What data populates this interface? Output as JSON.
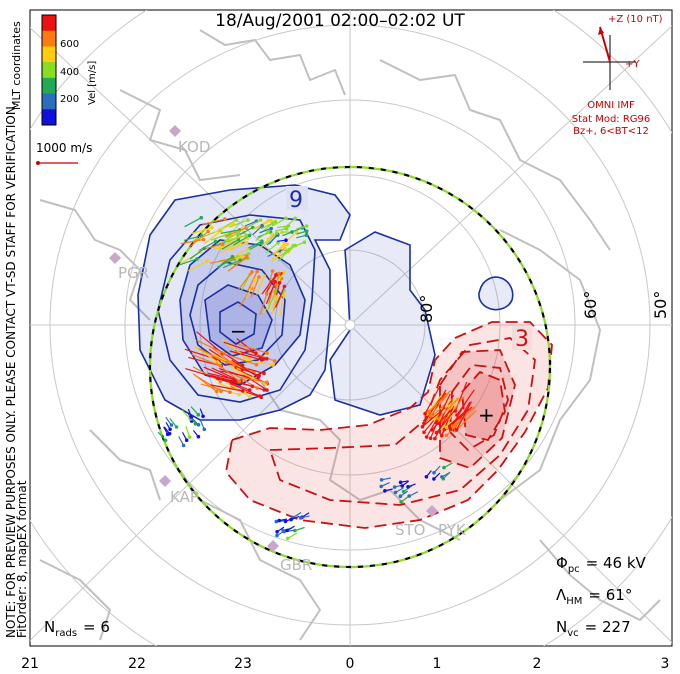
{
  "title": "18/Aug/2001 02:00–02:02 UT",
  "side_note_1": "NOTE: FOR PREVIEW PURPOSES ONLY. PLEASE CONTACT VT-SD STAFF FOR VERIFICATION.",
  "side_note_2": "FitOrder: 8, mapEX format",
  "coords_label": "MLT coordinates",
  "colorbar": {
    "label": "Vel [m/s]",
    "ticks": [
      "600",
      "400",
      "200"
    ],
    "colors": [
      "#ee1111",
      "#ff7a10",
      "#ffcc10",
      "#88dd22",
      "#22aa55",
      "#2a6fbf",
      "#1111dd"
    ]
  },
  "scale_vector_label": "1000 m/s",
  "imf": {
    "z_label": "+Z (10 nT)",
    "y_label": "+Y",
    "source_label": "OMNI IMF",
    "model_label": "Stat Mod: RG96",
    "condition_label": "Bz+, 6<BT<12",
    "color": "#cc0000"
  },
  "lat_labels": [
    "80°",
    "60°",
    "50°"
  ],
  "mlt_labels": [
    "21",
    "22",
    "23",
    "0",
    "1",
    "2",
    "3"
  ],
  "stations": [
    "KOD",
    "PGR",
    "KAP",
    "GBR",
    "STO",
    "PYK"
  ],
  "contour_labels": {
    "neg_value": "9",
    "pos_value": "3",
    "min_mark": "−",
    "max_mark": "+"
  },
  "stats": {
    "phi_symbol": "Φ",
    "phi_sub": "pc",
    "phi_value": "= 46 kV",
    "lambda_symbol": "Λ",
    "lambda_sub": "HM",
    "lambda_value": "= 61°",
    "nvc_symbol": "N",
    "nvc_sub": "vc",
    "nvc_value": "= 227",
    "nrads_symbol": "N",
    "nrads_sub": "rads",
    "nrads_value": "= 6"
  },
  "colors": {
    "negative_contour": "#1a2fa8",
    "positive_contour": "#cc1111",
    "negative_fill": "#5a6acb",
    "positive_fill": "#e35555",
    "grid": "#c8c8c8",
    "land": "#c0c0c0",
    "hmb": "#88dd22"
  }
}
